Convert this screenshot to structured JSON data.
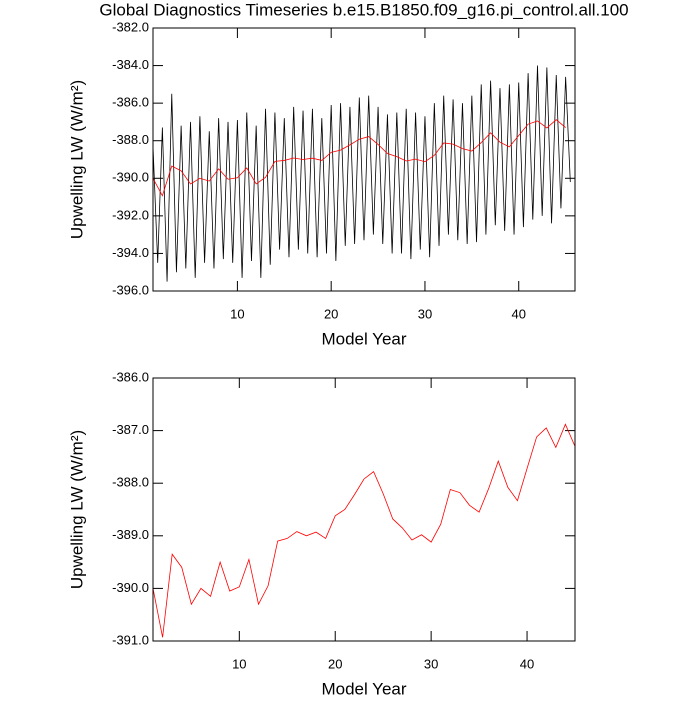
{
  "chart_data": [
    {
      "type": "line",
      "title": "Global Diagnostics Timeseries b.e15.B1850.f09_g16.pi_control.all.100",
      "xlabel": "Model Year",
      "ylabel": "Upwelling LW (W/m²)",
      "xlim": [
        1,
        46
      ],
      "xticks": [
        10,
        20,
        30,
        40
      ],
      "ylim": [
        -396,
        -382
      ],
      "yticks": [
        {
          "value": -396,
          "label": "-396.0"
        },
        {
          "value": -394,
          "label": "-394.0"
        },
        {
          "value": -392,
          "label": "-392.0"
        },
        {
          "value": -390,
          "label": "-390.0"
        },
        {
          "value": -388,
          "label": "-388.0"
        },
        {
          "value": -386,
          "label": "-386.0"
        },
        {
          "value": -384,
          "label": "-384.0"
        },
        {
          "value": -382,
          "label": "-382.0"
        }
      ],
      "series": [
        {
          "color": "#000000",
          "x": [
            1,
            1.5,
            2,
            2.5,
            3,
            3.5,
            4,
            4.5,
            5,
            5.5,
            6,
            6.5,
            7,
            7.5,
            8,
            8.5,
            9,
            9.5,
            10,
            10.5,
            11,
            11.5,
            12,
            12.5,
            13,
            13.5,
            14,
            14.5,
            15,
            15.5,
            16,
            16.5,
            17,
            17.5,
            18,
            18.5,
            19,
            19.5,
            20,
            20.5,
            21,
            21.5,
            22,
            22.5,
            23,
            23.5,
            24,
            24.5,
            25,
            25.5,
            26,
            26.5,
            27,
            27.5,
            28,
            28.5,
            29,
            29.5,
            30,
            30.5,
            31,
            31.5,
            32,
            32.5,
            33,
            33.5,
            34,
            34.5,
            35,
            35.5,
            36,
            36.5,
            37,
            37.5,
            38,
            38.5,
            39,
            39.5,
            40,
            40.5,
            41,
            41.5,
            42,
            42.5,
            43,
            43.5,
            44,
            44.5,
            45,
            45.5
          ],
          "values": [
            -388.3,
            -394.5,
            -387.3,
            -395.5,
            -385.5,
            -395.0,
            -387.2,
            -394.8,
            -387.0,
            -395.3,
            -386.7,
            -394.5,
            -387.5,
            -394.8,
            -386.8,
            -394.3,
            -387.0,
            -394.5,
            -386.9,
            -395.3,
            -386.5,
            -394.4,
            -387.2,
            -395.3,
            -386.3,
            -394.6,
            -386.5,
            -393.8,
            -386.8,
            -394.2,
            -386.2,
            -393.8,
            -386.4,
            -394.0,
            -386.3,
            -394.2,
            -386.8,
            -394.0,
            -386.1,
            -394.4,
            -386.0,
            -393.6,
            -386.2,
            -393.5,
            -385.7,
            -393.3,
            -385.6,
            -393.0,
            -386.2,
            -393.5,
            -386.6,
            -394.0,
            -386.5,
            -394.0,
            -386.3,
            -394.3,
            -386.5,
            -393.8,
            -386.7,
            -394.2,
            -386.0,
            -393.6,
            -385.6,
            -393.0,
            -385.8,
            -393.3,
            -386.0,
            -393.5,
            -385.6,
            -393.4,
            -385.0,
            -393.0,
            -384.8,
            -392.5,
            -385.2,
            -392.8,
            -385.0,
            -393.0,
            -384.9,
            -392.6,
            -384.4,
            -392.2,
            -384.0,
            -392.0,
            -384.1,
            -392.4,
            -384.5,
            -391.6,
            -384.6,
            -390.2
          ]
        },
        {
          "color": "#ff0000",
          "x": [
            1,
            2,
            3,
            4,
            5,
            6,
            7,
            8,
            9,
            10,
            11,
            12,
            13,
            14,
            15,
            16,
            17,
            18,
            19,
            20,
            21,
            22,
            23,
            24,
            25,
            26,
            27,
            28,
            29,
            30,
            31,
            32,
            33,
            34,
            35,
            36,
            37,
            38,
            39,
            40,
            41,
            42,
            43,
            44,
            45
          ],
          "values": [
            -390.0,
            -390.93,
            -389.35,
            -389.6,
            -390.3,
            -390.0,
            -390.15,
            -389.5,
            -390.05,
            -389.97,
            -389.45,
            -390.3,
            -389.95,
            -389.1,
            -389.05,
            -388.92,
            -389.0,
            -388.93,
            -389.05,
            -388.62,
            -388.5,
            -388.22,
            -387.92,
            -387.78,
            -388.2,
            -388.68,
            -388.85,
            -389.08,
            -388.98,
            -389.12,
            -388.78,
            -388.12,
            -388.18,
            -388.42,
            -388.55,
            -388.1,
            -387.58,
            -388.08,
            -388.33,
            -387.72,
            -387.12,
            -386.95,
            -387.32,
            -386.88,
            -387.3
          ]
        }
      ]
    },
    {
      "type": "line",
      "xlabel": "Model Year",
      "ylabel": "Upwelling LW (W/m²)",
      "xlim": [
        1,
        45
      ],
      "xticks": [
        10,
        20,
        30,
        40
      ],
      "ylim": [
        -391,
        -386
      ],
      "yticks": [
        {
          "value": -391,
          "label": "-391.0"
        },
        {
          "value": -390,
          "label": "-390.0"
        },
        {
          "value": -389,
          "label": "-389.0"
        },
        {
          "value": -388,
          "label": "-388.0"
        },
        {
          "value": -387,
          "label": "-387.0"
        },
        {
          "value": -386,
          "label": "-386.0"
        }
      ],
      "series": [
        {
          "color": "#ff0000",
          "x": [
            1,
            2,
            3,
            4,
            5,
            6,
            7,
            8,
            9,
            10,
            11,
            12,
            13,
            14,
            15,
            16,
            17,
            18,
            19,
            20,
            21,
            22,
            23,
            24,
            25,
            26,
            27,
            28,
            29,
            30,
            31,
            32,
            33,
            34,
            35,
            36,
            37,
            38,
            39,
            40,
            41,
            42,
            43,
            44,
            45
          ],
          "values": [
            -390.0,
            -390.93,
            -389.35,
            -389.6,
            -390.3,
            -390.0,
            -390.15,
            -389.5,
            -390.05,
            -389.97,
            -389.45,
            -390.3,
            -389.95,
            -389.1,
            -389.05,
            -388.92,
            -389.0,
            -388.93,
            -389.05,
            -388.62,
            -388.5,
            -388.22,
            -387.92,
            -387.78,
            -388.2,
            -388.68,
            -388.85,
            -389.08,
            -388.98,
            -389.12,
            -388.78,
            -388.12,
            -388.18,
            -388.42,
            -388.55,
            -388.1,
            -387.58,
            -388.08,
            -388.33,
            -387.72,
            -387.12,
            -386.95,
            -387.32,
            -386.88,
            -387.3
          ]
        }
      ]
    }
  ]
}
